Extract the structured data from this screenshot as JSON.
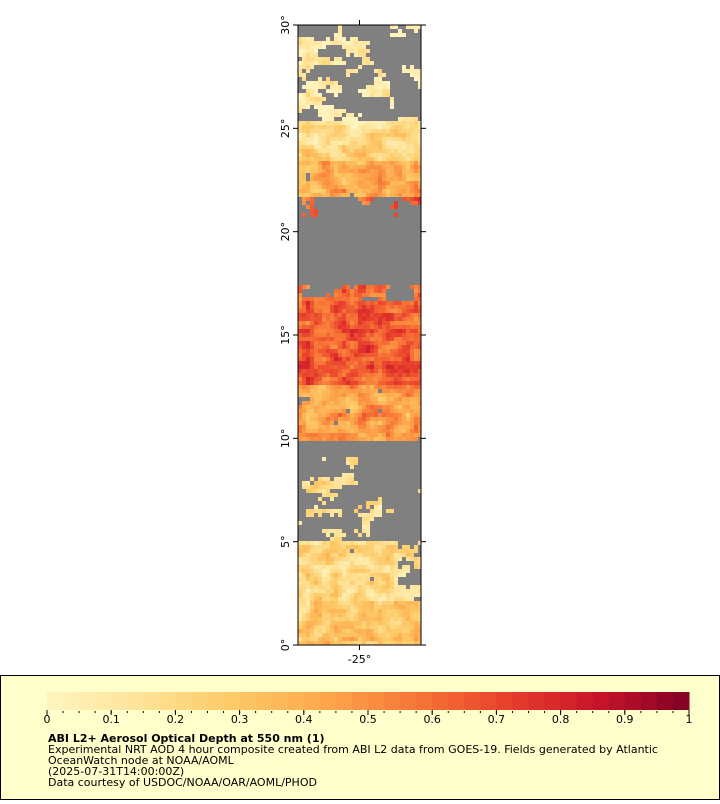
{
  "map": {
    "xlim": [
      -28,
      -22
    ],
    "ylim": [
      0,
      30
    ],
    "xticks": [
      {
        "value": -25,
        "label": "-25°"
      }
    ],
    "yticks": [
      {
        "value": 0,
        "label": "0°"
      },
      {
        "value": 5,
        "label": "5°"
      },
      {
        "value": 10,
        "label": "10°"
      },
      {
        "value": 15,
        "label": "15°"
      },
      {
        "value": 20,
        "label": "20°"
      },
      {
        "value": 25,
        "label": "25°"
      },
      {
        "value": 30,
        "label": "30°"
      }
    ],
    "background": "#808080"
  },
  "colorbar": {
    "range": [
      0,
      1
    ],
    "ticks": [
      0,
      0.1,
      0.2,
      0.3,
      0.4,
      0.5,
      0.6,
      0.7,
      0.8,
      0.9,
      1
    ],
    "colors": [
      "#fff4c0",
      "#fee49a",
      "#fdca68",
      "#fda84c",
      "#f87838",
      "#e8402c",
      "#c8142a",
      "#800026"
    ]
  },
  "legend": {
    "title": "ABI L2+ Aerosol Optical Depth at 550 nm (1)",
    "lines": [
      "Experimental NRT AOD 4 hour composite created from ABI L2 data from GOES-19. Fields generated by Atlantic",
      "OceanWatch node at NOAA/AOML",
      "(2025-07-31T14:00:00Z)",
      "Data courtesy of USDOC/NOAA/OAR/AOML/PHOD"
    ]
  }
}
